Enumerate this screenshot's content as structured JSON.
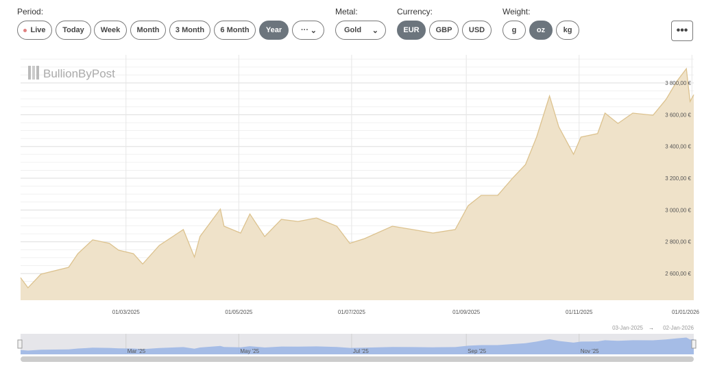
{
  "controls": {
    "period_label": "Period:",
    "periods": [
      {
        "label": "Live"
      },
      {
        "label": "Today"
      },
      {
        "label": "Week"
      },
      {
        "label": "Month"
      },
      {
        "label": "3 Month"
      },
      {
        "label": "6 Month"
      },
      {
        "label": "Year",
        "active": true
      },
      {
        "label": "···"
      }
    ],
    "metal_label": "Metal:",
    "metal_value": "Gold",
    "currency_label": "Currency:",
    "currencies": [
      {
        "label": "EUR",
        "active": true
      },
      {
        "label": "GBP"
      },
      {
        "label": "USD"
      }
    ],
    "weight_label": "Weight:",
    "weights": [
      {
        "label": "g"
      },
      {
        "label": "oz",
        "active": true
      },
      {
        "label": "kg"
      }
    ],
    "more_label": "•••",
    "live_dot_color": "#e08080",
    "active_color": "#6c757d"
  },
  "logo": "BullionByPost",
  "chart_data": {
    "type": "area",
    "x_ticks": [
      "01/03/2025",
      "01/05/2025",
      "01/07/2025",
      "01/09/2025",
      "01/11/2025",
      "01/01/2026"
    ],
    "y_ticks": [
      "2 600,00 €",
      "2 800,00 €",
      "3 000,00 €",
      "3 200,00 €",
      "3 400,00 €",
      "3 600,00 €",
      "3 800,00 €"
    ],
    "y_tick_values": [
      2600,
      2800,
      3000,
      3200,
      3400,
      3600,
      3800
    ],
    "ylim": [
      2432,
      3977
    ],
    "xlim": [
      "2025-01-03",
      "2026-01-02"
    ],
    "grid": true,
    "fill_color": "#efe2c9",
    "line_color": "#dcc28e",
    "points": [
      [
        "2025-01-03",
        2574
      ],
      [
        "2025-01-07",
        2510
      ],
      [
        "2025-01-14",
        2596
      ],
      [
        "2025-01-29",
        2639
      ],
      [
        "2025-02-03",
        2725
      ],
      [
        "2025-02-11",
        2812
      ],
      [
        "2025-02-20",
        2790
      ],
      [
        "2025-02-25",
        2747
      ],
      [
        "2025-03-05",
        2725
      ],
      [
        "2025-03-10",
        2660
      ],
      [
        "2025-03-19",
        2777
      ],
      [
        "2025-04-01",
        2877
      ],
      [
        "2025-04-07",
        2704
      ],
      [
        "2025-04-10",
        2833
      ],
      [
        "2025-04-21",
        3006
      ],
      [
        "2025-04-23",
        2898
      ],
      [
        "2025-05-02",
        2855
      ],
      [
        "2025-05-07",
        2975
      ],
      [
        "2025-05-15",
        2833
      ],
      [
        "2025-05-24",
        2941
      ],
      [
        "2025-06-02",
        2928
      ],
      [
        "2025-06-12",
        2950
      ],
      [
        "2025-06-23",
        2898
      ],
      [
        "2025-06-30",
        2790
      ],
      [
        "2025-07-08",
        2820
      ],
      [
        "2025-07-23",
        2898
      ],
      [
        "2025-08-03",
        2877
      ],
      [
        "2025-08-14",
        2855
      ],
      [
        "2025-08-26",
        2877
      ],
      [
        "2025-09-02",
        3027
      ],
      [
        "2025-09-09",
        3092
      ],
      [
        "2025-09-18",
        3092
      ],
      [
        "2025-09-26",
        3200
      ],
      [
        "2025-10-03",
        3286
      ],
      [
        "2025-10-09",
        3459
      ],
      [
        "2025-10-16",
        3718
      ],
      [
        "2025-10-21",
        3524
      ],
      [
        "2025-10-29",
        3351
      ],
      [
        "2025-11-02",
        3459
      ],
      [
        "2025-11-11",
        3481
      ],
      [
        "2025-11-15",
        3610
      ],
      [
        "2025-11-22",
        3545
      ],
      [
        "2025-11-30",
        3610
      ],
      [
        "2025-12-11",
        3597
      ],
      [
        "2025-12-18",
        3696
      ],
      [
        "2025-12-24",
        3813
      ],
      [
        "2025-12-29",
        3890
      ],
      [
        "2025-12-31",
        3683
      ],
      [
        "2026-01-02",
        3726
      ]
    ],
    "navigator": {
      "labels": [
        "Mar '25",
        "May '25",
        "Jul '25",
        "Sep '25",
        "Nov '25"
      ],
      "range_from": "03-Jan-2025",
      "range_arrow": "→",
      "range_to": "02-Jan-2026",
      "fill_color": "#9db7e6"
    }
  }
}
